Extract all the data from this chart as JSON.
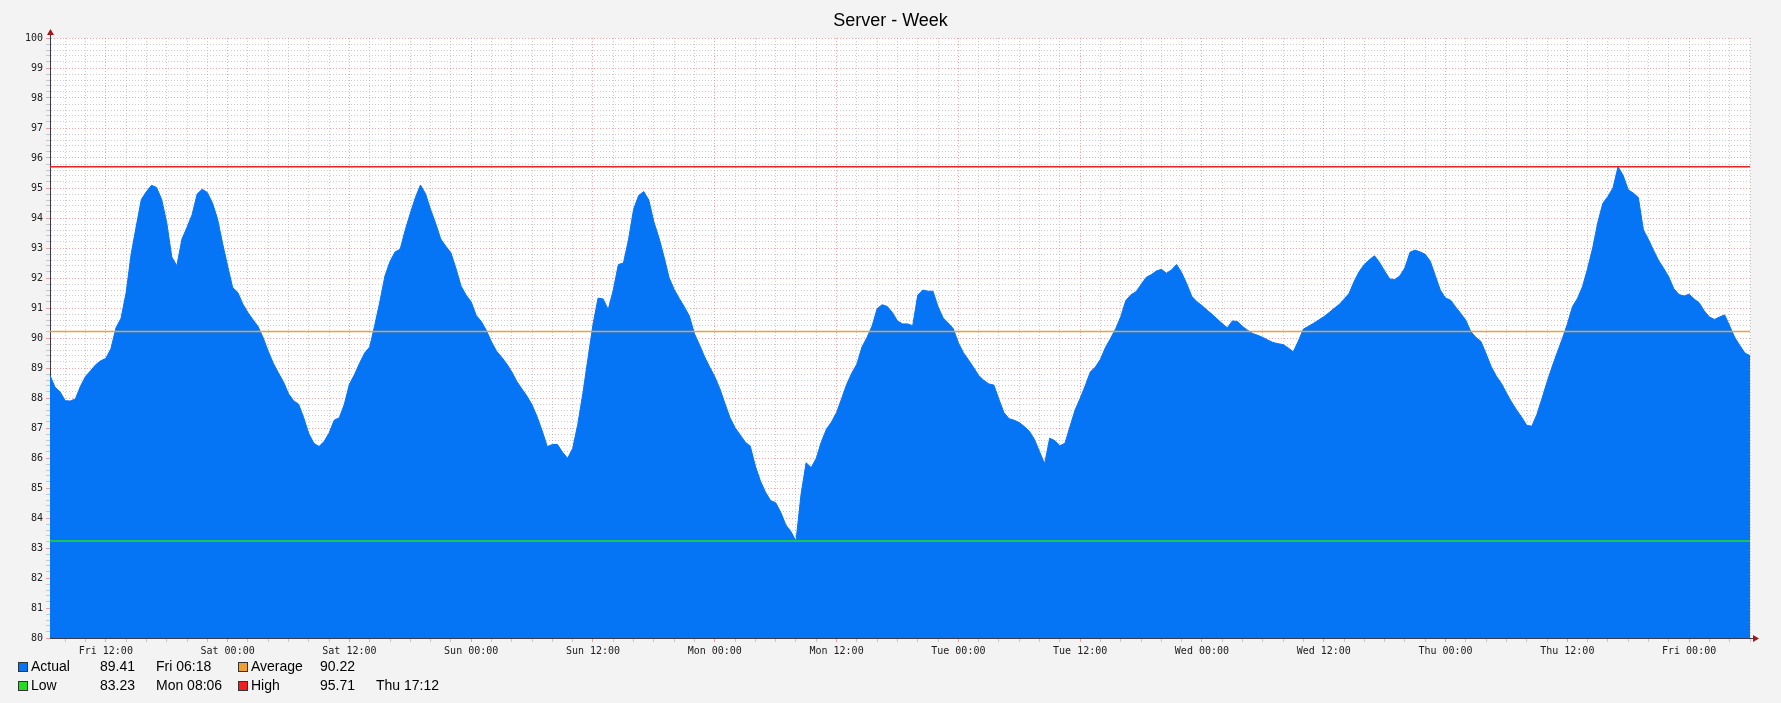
{
  "chart_data": {
    "type": "area",
    "title": "Server - Week",
    "categories": [
      null,
      null,
      null,
      null,
      null,
      null,
      null,
      null,
      null,
      null,
      null,
      "Fri 12:00",
      null,
      null,
      null,
      null,
      null,
      null,
      null,
      null,
      null,
      null,
      null,
      null,
      null,
      null,
      null,
      null,
      null,
      null,
      null,
      null,
      null,
      null,
      null,
      "Sat 00:00",
      null,
      null,
      null,
      null,
      null,
      null,
      null,
      null,
      null,
      null,
      null,
      null,
      null,
      null,
      null,
      null,
      null,
      null,
      null,
      null,
      null,
      null,
      null,
      "Sat 12:00",
      null,
      null,
      null,
      null,
      null,
      null,
      null,
      null,
      null,
      null,
      null,
      null,
      null,
      null,
      null,
      null,
      null,
      null,
      null,
      null,
      null,
      null,
      null,
      "Sun 00:00",
      null,
      null,
      null,
      null,
      null,
      null,
      null,
      null,
      null,
      null,
      null,
      null,
      null,
      null,
      null,
      null,
      null,
      null,
      null,
      null,
      null,
      null,
      null,
      "Sun 12:00",
      null,
      null,
      null,
      null,
      null,
      null,
      null,
      null,
      null,
      null,
      null,
      null,
      null,
      null,
      null,
      null,
      null,
      null,
      null,
      null,
      null,
      null,
      null,
      "Mon 00:00",
      null,
      null,
      null,
      null,
      null,
      null,
      null,
      null,
      null,
      null,
      null,
      null,
      null,
      null,
      null,
      null,
      null,
      null,
      null,
      null,
      null,
      null,
      null,
      "Mon 12:00",
      null,
      null,
      null,
      null,
      null,
      null,
      null,
      null,
      null,
      null,
      null,
      null,
      null,
      null,
      null,
      null,
      null,
      null,
      null,
      null,
      null,
      null,
      null,
      "Tue 00:00",
      null,
      null,
      null,
      null,
      null,
      null,
      null,
      null,
      null,
      null,
      null,
      null,
      null,
      null,
      null,
      null,
      null,
      null,
      null,
      null,
      null,
      null,
      null,
      "Tue 12:00",
      null,
      null,
      null,
      null,
      null,
      null,
      null,
      null,
      null,
      null,
      null,
      null,
      null,
      null,
      null,
      null,
      null,
      null,
      null,
      null,
      null,
      null,
      null,
      "Wed 00:00",
      null,
      null,
      null,
      null,
      null,
      null,
      null,
      null,
      null,
      null,
      null,
      null,
      null,
      null,
      null,
      null,
      null,
      null,
      null,
      null,
      null,
      null,
      null,
      "Wed 12:00",
      null,
      null,
      null,
      null,
      null,
      null,
      null,
      null,
      null,
      null,
      null,
      null,
      null,
      null,
      null,
      null,
      null,
      null,
      null,
      null,
      null,
      null,
      null,
      "Thu 00:00",
      null,
      null,
      null,
      null,
      null,
      null,
      null,
      null,
      null,
      null,
      null,
      null,
      null,
      null,
      null,
      null,
      null,
      null,
      null,
      null,
      null,
      null,
      null,
      "Thu 12:00",
      null,
      null,
      null,
      null,
      null,
      null,
      null,
      null,
      null,
      null,
      null,
      null,
      null,
      null,
      null,
      null,
      null,
      null,
      null,
      null,
      null,
      null,
      null,
      "Fri 00:00",
      null,
      null,
      null,
      null,
      null,
      null,
      null,
      null,
      null,
      null,
      null,
      null
    ],
    "series": [
      {
        "name": "Actual",
        "color": "#0575f5",
        "values": [
          88.75,
          88.36,
          88.2,
          87.91,
          87.9,
          87.97,
          88.39,
          88.72,
          88.91,
          89.11,
          89.24,
          89.32,
          89.64,
          90.34,
          90.66,
          91.51,
          92.81,
          93.73,
          94.62,
          94.88,
          95.09,
          95.02,
          94.62,
          93.85,
          92.7,
          92.41,
          93.3,
          93.69,
          94.11,
          94.8,
          94.96,
          94.85,
          94.51,
          93.98,
          93.16,
          92.4,
          91.68,
          91.52,
          91.13,
          90.85,
          90.61,
          90.38,
          90.01,
          89.56,
          89.16,
          88.84,
          88.54,
          88.14,
          87.91,
          87.79,
          87.34,
          86.81,
          86.49,
          86.38,
          86.55,
          86.83,
          87.26,
          87.34,
          87.79,
          88.46,
          88.78,
          89.16,
          89.5,
          89.7,
          90.43,
          91.21,
          92.07,
          92.55,
          92.87,
          92.96,
          93.6,
          94.16,
          94.68,
          95.1,
          94.81,
          94.28,
          93.82,
          93.3,
          93.06,
          92.84,
          92.32,
          91.73,
          91.43,
          91.2,
          90.75,
          90.55,
          90.25,
          89.87,
          89.56,
          89.36,
          89.14,
          88.87,
          88.55,
          88.3,
          88.06,
          87.77,
          87.37,
          86.9,
          86.38,
          86.45,
          86.45,
          86.19,
          85.99,
          86.32,
          87.12,
          88.15,
          89.31,
          90.45,
          91.33,
          91.3,
          90.95,
          91.6,
          92.45,
          92.5,
          93.28,
          94.29,
          94.75,
          94.88,
          94.6,
          93.87,
          93.34,
          92.71,
          92.01,
          91.62,
          91.32,
          91.04,
          90.73,
          90.14,
          89.77,
          89.37,
          89.03,
          88.71,
          88.31,
          87.82,
          87.34,
          87.01,
          86.77,
          86.53,
          86.39,
          85.73,
          85.23,
          84.86,
          84.58,
          84.51,
          84.19,
          83.77,
          83.55,
          83.23,
          84.79,
          85.84,
          85.68,
          85.99,
          86.54,
          86.96,
          87.2,
          87.52,
          87.98,
          88.46,
          88.83,
          89.13,
          89.7,
          90.02,
          90.4,
          90.98,
          91.11,
          91.05,
          90.85,
          90.57,
          90.47,
          90.47,
          90.41,
          91.43,
          91.6,
          91.56,
          91.56,
          91.04,
          90.67,
          90.5,
          90.31,
          89.84,
          89.51,
          89.27,
          89.02,
          88.75,
          88.59,
          88.47,
          88.43,
          87.95,
          87.51,
          87.31,
          87.26,
          87.18,
          87.05,
          86.89,
          86.62,
          86.21,
          85.81,
          86.66,
          86.58,
          86.41,
          86.49,
          87.05,
          87.6,
          87.99,
          88.41,
          88.87,
          89.03,
          89.29,
          89.69,
          89.99,
          90.31,
          90.71,
          91.25,
          91.44,
          91.54,
          91.78,
          92.02,
          92.11,
          92.23,
          92.29,
          92.16,
          92.27,
          92.45,
          92.18,
          91.81,
          91.39,
          91.21,
          91.08,
          90.93,
          90.79,
          90.63,
          90.48,
          90.34,
          90.57,
          90.55,
          90.38,
          90.26,
          90.15,
          90.09,
          90.02,
          89.93,
          89.85,
          89.81,
          89.78,
          89.67,
          89.54,
          89.9,
          90.3,
          90.39,
          90.49,
          90.6,
          90.71,
          90.84,
          90.98,
          91.11,
          91.29,
          91.49,
          91.89,
          92.22,
          92.45,
          92.61,
          92.74,
          92.52,
          92.23,
          91.97,
          91.95,
          92.07,
          92.34,
          92.86,
          92.93,
          92.87,
          92.79,
          92.56,
          92.07,
          91.59,
          91.33,
          91.26,
          91.03,
          90.82,
          90.59,
          90.21,
          90.02,
          89.88,
          89.47,
          89.05,
          88.73,
          88.49,
          88.17,
          87.87,
          87.6,
          87.36,
          87.09,
          87.06,
          87.45,
          87.98,
          88.53,
          89.04,
          89.51,
          89.97,
          90.46,
          91.04,
          91.32,
          91.72,
          92.32,
          93.0,
          93.85,
          94.49,
          94.72,
          95.0,
          95.71,
          95.42,
          94.94,
          94.83,
          94.68,
          93.6,
          93.28,
          92.92,
          92.58,
          92.32,
          92.03,
          91.64,
          91.45,
          91.4,
          91.46,
          91.3,
          91.17,
          90.9,
          90.7,
          90.62,
          90.7,
          90.77,
          90.4,
          90.02,
          89.75,
          89.5,
          89.41
        ]
      }
    ],
    "ylim": [
      80,
      100
    ],
    "yticks": [
      80,
      {
        "value": 80.2,
        "label": null
      },
      {
        "value": 80.4,
        "label": null
      },
      {
        "value": 80.6,
        "label": null
      },
      {
        "value": 80.8,
        "label": null
      },
      81,
      {
        "value": 81.2,
        "label": null
      },
      {
        "value": 81.4,
        "label": null
      },
      {
        "value": 81.6,
        "label": null
      },
      {
        "value": 81.8,
        "label": null
      },
      82,
      {
        "value": 82.2,
        "label": null
      },
      {
        "value": 82.4,
        "label": null
      },
      {
        "value": 82.6,
        "label": null
      },
      {
        "value": 82.8,
        "label": null
      },
      83,
      {
        "value": 83.2,
        "label": null
      },
      {
        "value": 83.4,
        "label": null
      },
      {
        "value": 83.6,
        "label": null
      },
      {
        "value": 83.8,
        "label": null
      },
      84,
      {
        "value": 84.2,
        "label": null
      },
      {
        "value": 84.4,
        "label": null
      },
      {
        "value": 84.6,
        "label": null
      },
      {
        "value": 84.8,
        "label": null
      },
      85,
      {
        "value": 85.2,
        "label": null
      },
      {
        "value": 85.4,
        "label": null
      },
      {
        "value": 85.6,
        "label": null
      },
      {
        "value": 85.8,
        "label": null
      },
      86,
      {
        "value": 86.2,
        "label": null
      },
      {
        "value": 86.4,
        "label": null
      },
      {
        "value": 86.6,
        "label": null
      },
      {
        "value": 86.8,
        "label": null
      },
      87,
      {
        "value": 87.2,
        "label": null
      },
      {
        "value": 87.4,
        "label": null
      },
      {
        "value": 87.6,
        "label": null
      },
      {
        "value": 87.8,
        "label": null
      },
      88,
      {
        "value": 88.2,
        "label": null
      },
      {
        "value": 88.4,
        "label": null
      },
      {
        "value": 88.6,
        "label": null
      },
      {
        "value": 88.8,
        "label": null
      },
      89,
      {
        "value": 89.2,
        "label": null
      },
      {
        "value": 89.4,
        "label": null
      },
      {
        "value": 89.6,
        "label": null
      },
      {
        "value": 89.8,
        "label": null
      },
      90,
      {
        "value": 90.2,
        "label": null
      },
      {
        "value": 90.4,
        "label": null
      },
      {
        "value": 90.6,
        "label": null
      },
      {
        "value": 90.8,
        "label": null
      },
      91,
      {
        "value": 91.2,
        "label": null
      },
      {
        "value": 91.4,
        "label": null
      },
      {
        "value": 91.6,
        "label": null
      },
      {
        "value": 91.8,
        "label": null
      },
      92,
      {
        "value": 92.2,
        "label": null
      },
      {
        "value": 92.4,
        "label": null
      },
      {
        "value": 92.6,
        "label": null
      },
      {
        "value": 92.8,
        "label": null
      },
      93,
      {
        "value": 93.2,
        "label": null
      },
      {
        "value": 93.4,
        "label": null
      },
      {
        "value": 93.6,
        "label": null
      },
      {
        "value": 93.8,
        "label": null
      },
      94,
      {
        "value": 94.2,
        "label": null
      },
      {
        "value": 94.4,
        "label": null
      },
      {
        "value": 94.6,
        "label": null
      },
      {
        "value": 94.8,
        "label": null
      },
      95,
      {
        "value": 95.2,
        "label": null
      },
      {
        "value": 95.4,
        "label": null
      },
      {
        "value": 95.6,
        "label": null
      },
      {
        "value": 95.8,
        "label": null
      },
      96,
      {
        "value": 96.2,
        "label": null
      },
      {
        "value": 96.4,
        "label": null
      },
      {
        "value": 96.6,
        "label": null
      },
      {
        "value": 96.8,
        "label": null
      },
      97,
      {
        "value": 97.2,
        "label": null
      },
      {
        "value": 97.4,
        "label": null
      },
      {
        "value": 97.6,
        "label": null
      },
      {
        "value": 97.8,
        "label": null
      },
      98,
      {
        "value": 98.2,
        "label": null
      },
      {
        "value": 98.4,
        "label": null
      },
      {
        "value": 98.6,
        "label": null
      },
      {
        "value": 98.8,
        "label": null
      },
      99,
      {
        "value": 99.2,
        "label": null
      },
      {
        "value": 99.4,
        "label": null
      },
      {
        "value": 99.6,
        "label": null
      },
      {
        "value": 99.8,
        "label": null
      },
      100
    ],
    "grid": true,
    "legend": "bottom left",
    "ref_lines": [
      {
        "axis": "y",
        "value": 90.22,
        "label": "Average",
        "color": "#f0a030"
      },
      {
        "axis": "y",
        "value": 83.23,
        "label": "Low",
        "color": "#22dd22"
      },
      {
        "axis": "y",
        "value": 95.71,
        "label": "High",
        "color": "#ee2020"
      }
    ],
    "annotations": [
      "89.41  Fri 06:18",
      "90.22",
      "83.23  Mon 08:06",
      "95.71  Thu 17:12"
    ]
  }
}
